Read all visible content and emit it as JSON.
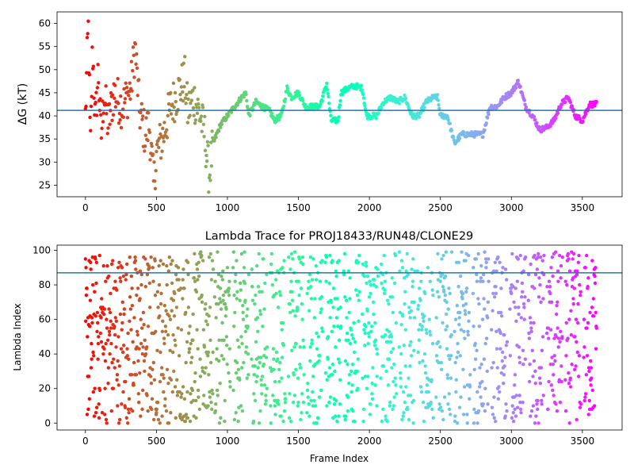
{
  "chart_data": [
    {
      "type": "scatter",
      "title": "",
      "xlabel": "",
      "ylabel": "ΔG (kT)",
      "xlim": [
        -200,
        3780
      ],
      "ylim": [
        22.5,
        62.5
      ],
      "xticks": [
        0,
        500,
        1000,
        1500,
        2000,
        2500,
        3000,
        3500
      ],
      "yticks": [
        25,
        30,
        35,
        40,
        45,
        50,
        55,
        60
      ],
      "hline": 41.2,
      "hline_color": "#1f77b4",
      "colormap": "rainbow",
      "frames_max": 3600,
      "trace_anchors": [
        [
          0,
          40
        ],
        [
          20,
          60
        ],
        [
          35,
          32
        ],
        [
          50,
          55
        ],
        [
          70,
          38
        ],
        [
          90,
          50
        ],
        [
          110,
          35
        ],
        [
          130,
          45
        ],
        [
          160,
          38
        ],
        [
          200,
          45
        ],
        [
          260,
          42
        ],
        [
          320,
          46
        ],
        [
          350,
          55
        ],
        [
          380,
          41
        ],
        [
          420,
          36
        ],
        [
          450,
          38
        ],
        [
          480,
          25
        ],
        [
          500,
          32
        ],
        [
          550,
          36
        ],
        [
          600,
          42
        ],
        [
          650,
          45
        ],
        [
          700,
          48
        ],
        [
          720,
          41
        ],
        [
          760,
          44
        ],
        [
          800,
          41
        ],
        [
          840,
          36
        ],
        [
          870,
          27
        ],
        [
          900,
          34
        ],
        [
          950,
          38
        ],
        [
          1000,
          40
        ],
        [
          1050,
          42
        ],
        [
          1100,
          44
        ],
        [
          1130,
          45
        ],
        [
          1150,
          40
        ],
        [
          1200,
          43
        ],
        [
          1300,
          41
        ],
        [
          1330,
          39
        ],
        [
          1380,
          40
        ],
        [
          1420,
          46
        ],
        [
          1450,
          44
        ],
        [
          1500,
          45
        ],
        [
          1550,
          42
        ],
        [
          1650,
          42
        ],
        [
          1700,
          47
        ],
        [
          1730,
          39
        ],
        [
          1780,
          39
        ],
        [
          1800,
          45
        ],
        [
          1850,
          46
        ],
        [
          1900,
          46.5
        ],
        [
          1950,
          46
        ],
        [
          1980,
          40
        ],
        [
          2050,
          40
        ],
        [
          2100,
          43
        ],
        [
          2150,
          44
        ],
        [
          2200,
          43
        ],
        [
          2250,
          44
        ],
        [
          2300,
          40
        ],
        [
          2350,
          40
        ],
        [
          2400,
          43
        ],
        [
          2450,
          44
        ],
        [
          2480,
          44
        ],
        [
          2500,
          40
        ],
        [
          2550,
          40
        ],
        [
          2600,
          34
        ],
        [
          2650,
          36
        ],
        [
          2800,
          36
        ],
        [
          2850,
          42
        ],
        [
          2900,
          42
        ],
        [
          2950,
          44
        ],
        [
          3000,
          45
        ],
        [
          3050,
          47.5
        ],
        [
          3100,
          42
        ],
        [
          3150,
          40
        ],
        [
          3200,
          37
        ],
        [
          3250,
          37.5
        ],
        [
          3300,
          39
        ],
        [
          3350,
          42.5
        ],
        [
          3400,
          44
        ],
        [
          3450,
          40
        ],
        [
          3500,
          39
        ],
        [
          3550,
          42.5
        ],
        [
          3600,
          42.5
        ]
      ]
    },
    {
      "type": "scatter",
      "title": "Lambda Trace for PROJ18433/RUN48/CLONE29",
      "xlabel": "Frame Index",
      "ylabel": "Lambda Index",
      "xlim": [
        -200,
        3780
      ],
      "ylim": [
        -4,
        103
      ],
      "xticks": [
        0,
        500,
        1000,
        1500,
        2000,
        2500,
        3000,
        3500
      ],
      "yticks": [
        0,
        20,
        40,
        60,
        80,
        100
      ],
      "hline": 87,
      "hline_color": "#1f77b4",
      "colormap": "rainbow",
      "frames_max": 3600
    }
  ]
}
